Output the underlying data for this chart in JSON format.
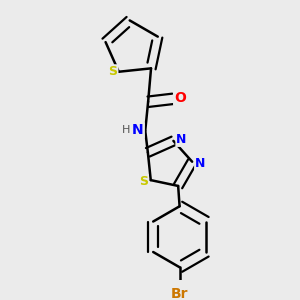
{
  "background_color": "#ebebeb",
  "bond_color": "#000000",
  "atom_colors": {
    "S": "#c8c800",
    "O": "#ff0000",
    "N": "#0000ff",
    "Br": "#cc7700",
    "C": "#000000",
    "H": "#555555"
  },
  "figsize": [
    3.0,
    3.0
  ],
  "dpi": 100
}
